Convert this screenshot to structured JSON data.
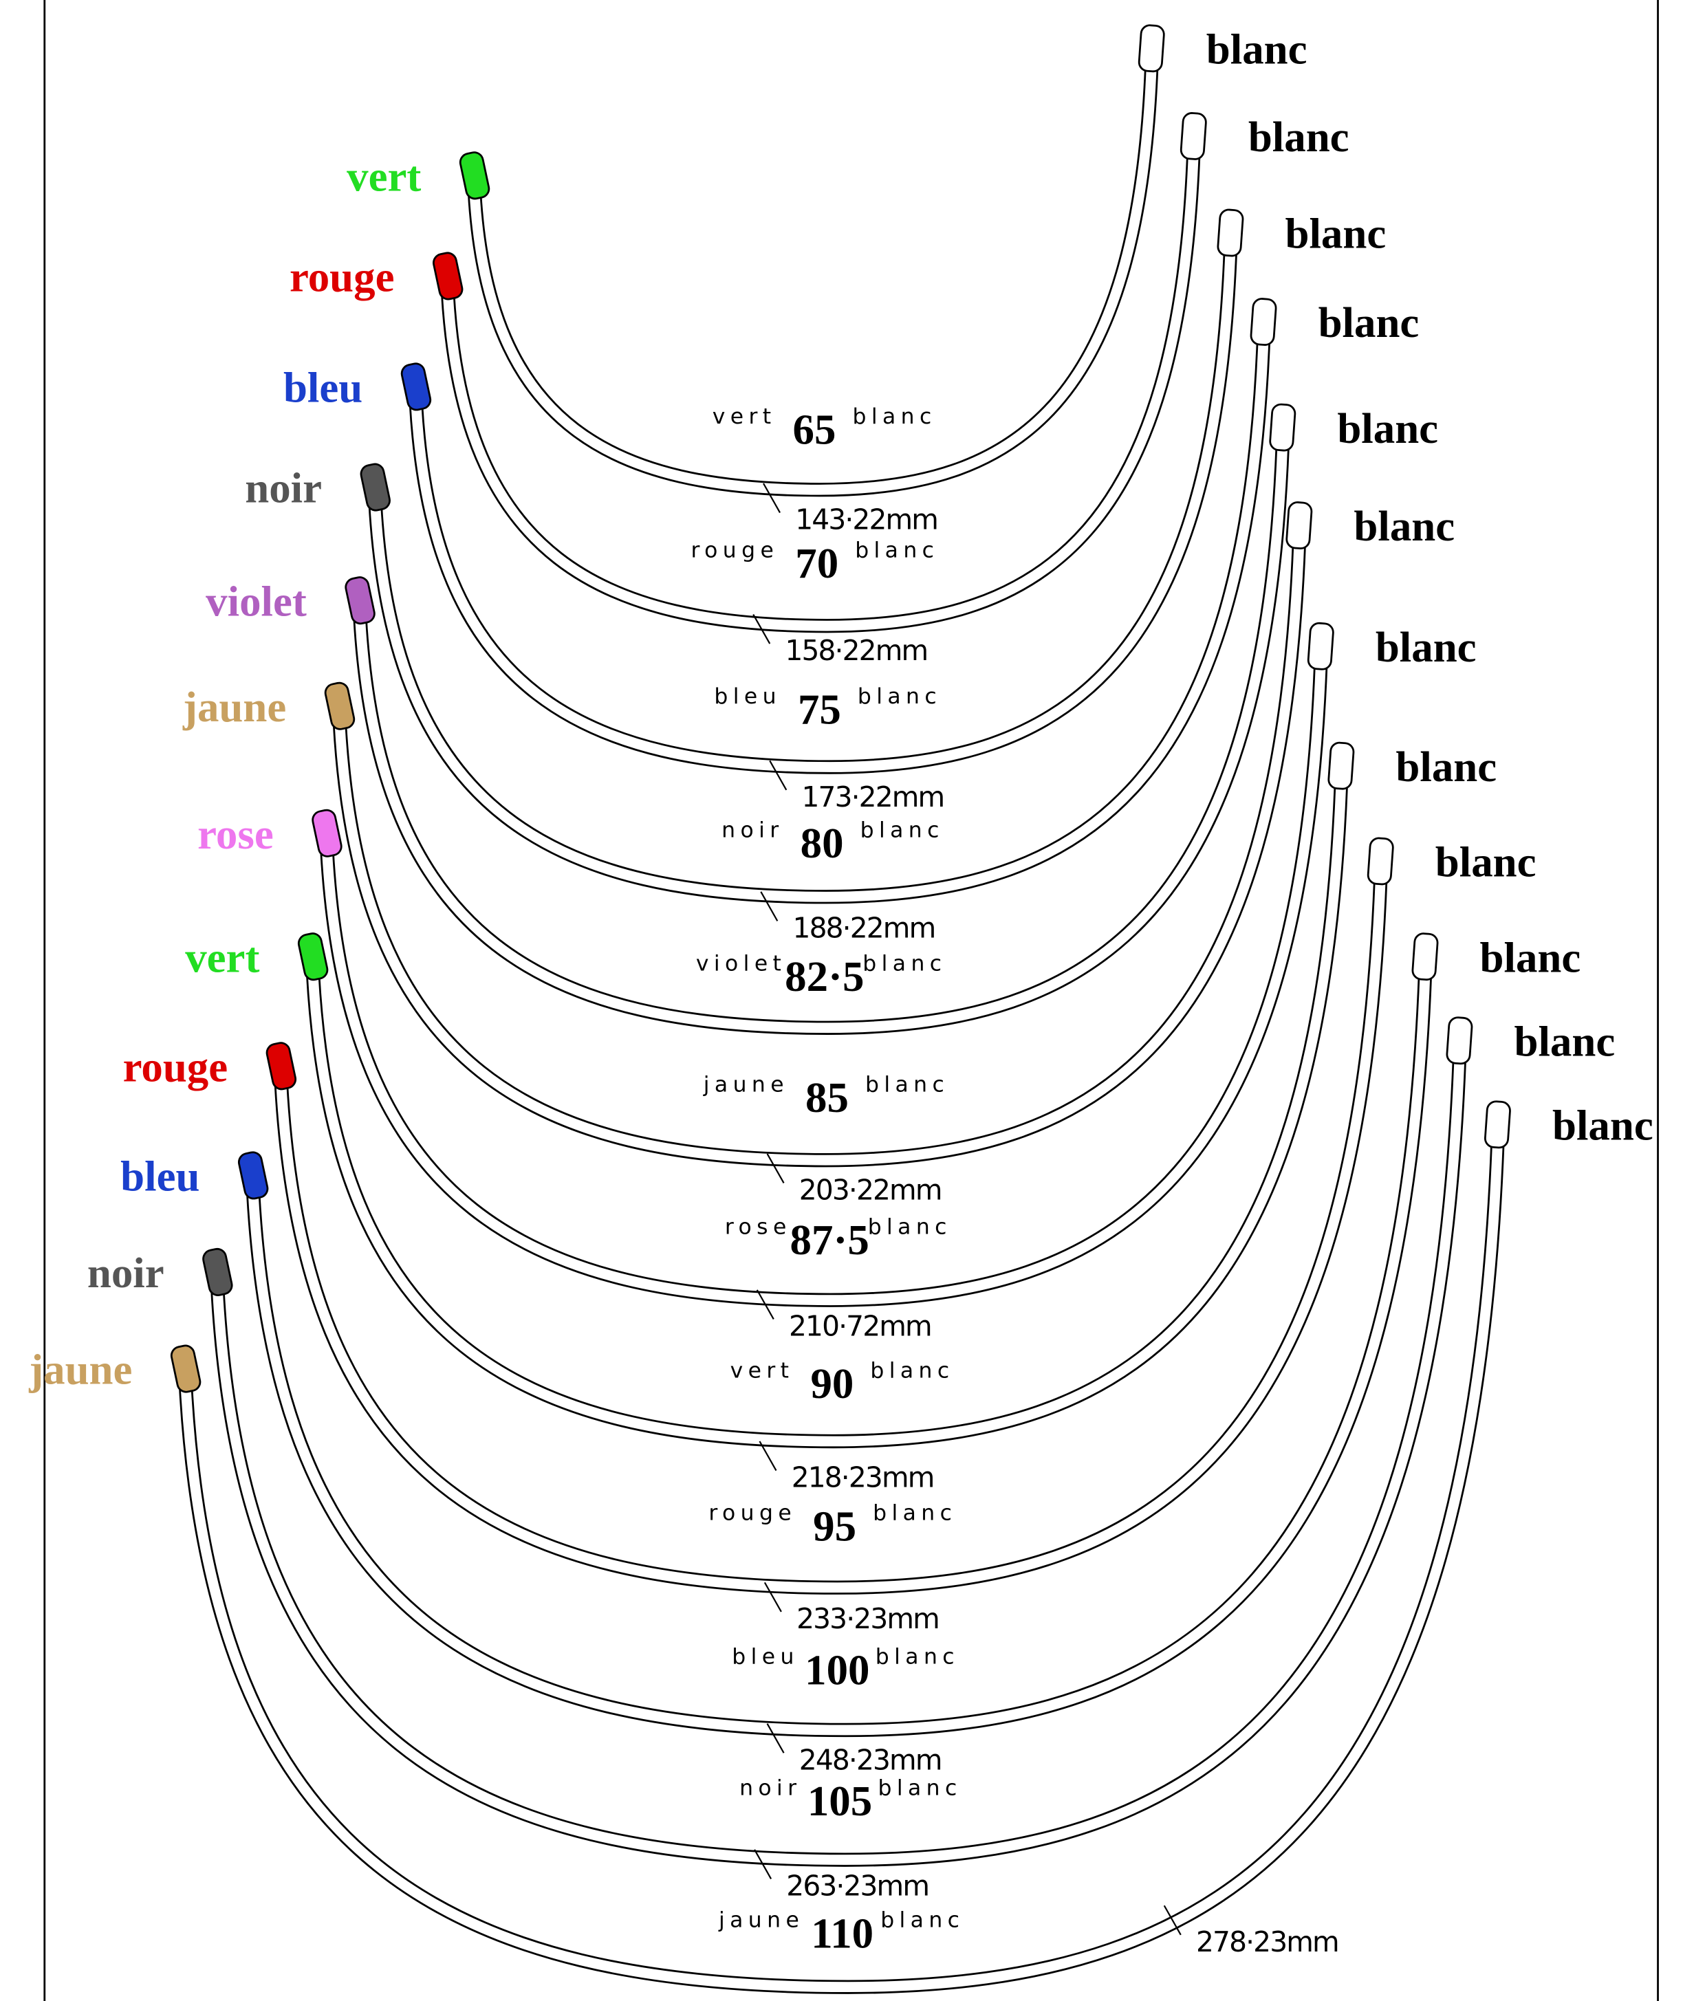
{
  "wires": [
    {
      "left_label": "vert",
      "tip_color": "#22dd22",
      "size": "65",
      "center_left": "vert",
      "center_right": "blanc",
      "right_label": "blanc",
      "length": "143·22mm"
    },
    {
      "left_label": "rouge",
      "tip_color": "#dd0000",
      "size": "70",
      "center_left": "rouge",
      "center_right": "blanc",
      "right_label": "blanc",
      "length": "158·22mm"
    },
    {
      "left_label": "bleu",
      "tip_color": "#1a3fcc",
      "size": "75",
      "center_left": "bleu",
      "center_right": "blanc",
      "right_label": "blanc",
      "length": "173·22mm"
    },
    {
      "left_label": "noir",
      "tip_color": "#555555",
      "size": "80",
      "center_left": "noir",
      "center_right": "blanc",
      "right_label": "blanc",
      "length": "188·22mm"
    },
    {
      "left_label": "violet",
      "tip_color": "#b060c0",
      "size": "82·5",
      "center_left": "violet",
      "center_right": "blanc",
      "right_label": "blanc"
    },
    {
      "left_label": "jaune",
      "tip_color": "#c8a060",
      "size": "85",
      "center_left": "jaune",
      "center_right": "blanc",
      "right_label": "blanc",
      "length": "203·22mm"
    },
    {
      "left_label": "rose",
      "tip_color": "#ee77ee",
      "size": "87·5",
      "center_left": "rose",
      "center_right": "blanc",
      "right_label": "blanc",
      "length": "210·72mm"
    },
    {
      "left_label": "vert",
      "tip_color": "#22dd22",
      "size": "90",
      "center_left": "vert",
      "center_right": "blanc",
      "right_label": "blanc",
      "length": "218·23mm"
    },
    {
      "left_label": "rouge",
      "tip_color": "#dd0000",
      "size": "95",
      "center_left": "rouge",
      "center_right": "blanc",
      "right_label": "blanc",
      "length": "233·23mm"
    },
    {
      "left_label": "bleu",
      "tip_color": "#1a3fcc",
      "size": "100",
      "center_left": "bleu",
      "center_right": "blanc",
      "right_label": "blanc",
      "length": "248·23mm"
    },
    {
      "left_label": "noir",
      "tip_color": "#555555",
      "size": "105",
      "center_left": "noir",
      "center_right": "blanc",
      "right_label": "blanc",
      "length": "263·23mm"
    },
    {
      "left_label": "jaune",
      "tip_color": "#c8a060",
      "size": "110",
      "center_left": "jaune",
      "center_right": "blanc",
      "right_label": "blanc",
      "length": "278·23mm"
    }
  ]
}
